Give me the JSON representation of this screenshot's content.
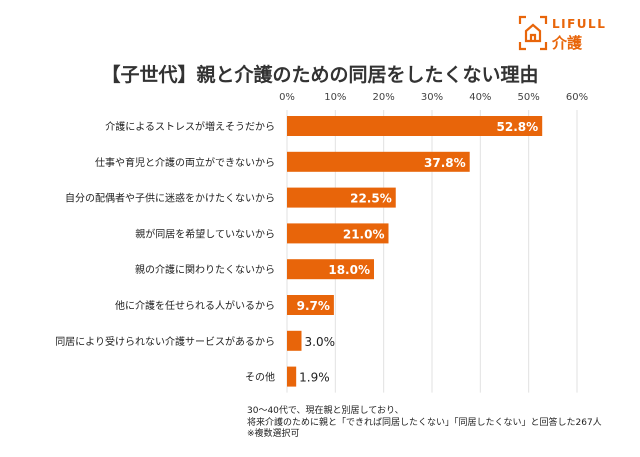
{
  "logo": {
    "text_top": "LIFULL",
    "text_bottom": "介護",
    "color": "#e8650a"
  },
  "note": [
    "30～40代で、現在親と別居しており、",
    "将来介護のために親と「できれば同居したくない」「同居したくない」と回答した267人",
    "※複数選択可"
  ],
  "chart_data": {
    "type": "bar",
    "orientation": "horizontal",
    "title": "【子世代】親と介護のための同居をしたくない理由",
    "categories": [
      "介護によるストレスが増えそうだから",
      "仕事や育児と介護の両立ができないから",
      "自分の配偶者や子供に迷惑をかけたくないから",
      "親が同居を希望していないから",
      "親の介護に関わりたくないから",
      "他に介護を任せられる人がいるから",
      "同居により受けられない介護サービスがあるから",
      "その他"
    ],
    "values": [
      52.8,
      37.8,
      22.5,
      21.0,
      18.0,
      9.7,
      3.0,
      1.9
    ],
    "data_labels": [
      "52.8%",
      "37.8%",
      "22.5%",
      "21.0%",
      "18.0%",
      "9.7%",
      "3.0%",
      "1.9%"
    ],
    "xlim": [
      0,
      60
    ],
    "x_ticks": [
      "0%",
      "10%",
      "20%",
      "30%",
      "40%",
      "50%",
      "60%"
    ],
    "x_tick_values": [
      0,
      10,
      20,
      30,
      40,
      50,
      60
    ],
    "axis_position": "top",
    "grid": true,
    "bar_color": "#e8650a"
  }
}
